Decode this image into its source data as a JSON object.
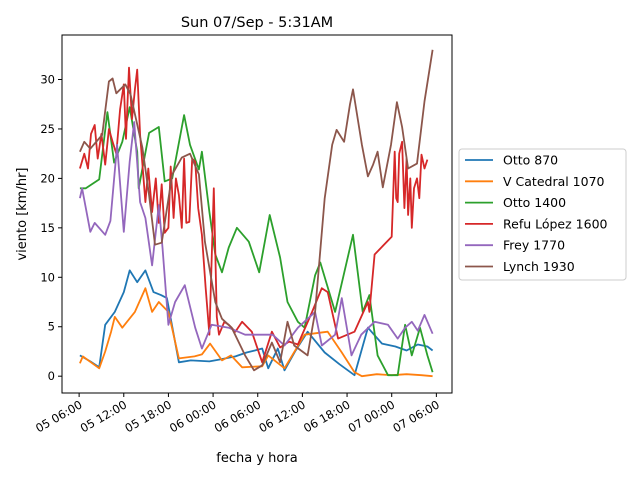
{
  "chart_data": {
    "type": "line",
    "title": "Sun 07/Sep - 5:31AM",
    "xlabel": "fecha y hora",
    "ylabel": "viento [km/hr]",
    "x_unit": "hours since 05 00:00",
    "xlim": [
      3.7,
      56.1
    ],
    "ylim": [
      -1.7,
      34.5
    ],
    "grid": false,
    "legend_position": "center-right-outside",
    "xticks": [
      {
        "value": 6,
        "label": "05 06:00"
      },
      {
        "value": 12,
        "label": "05 12:00"
      },
      {
        "value": 18,
        "label": "05 18:00"
      },
      {
        "value": 24,
        "label": "06 00:00"
      },
      {
        "value": 30,
        "label": "06 06:00"
      },
      {
        "value": 36,
        "label": "06 12:00"
      },
      {
        "value": 42,
        "label": "06 18:00"
      },
      {
        "value": 48,
        "label": "07 00:00"
      },
      {
        "value": 54,
        "label": "07 06:00"
      }
    ],
    "yticks": [
      {
        "value": 0,
        "label": "0"
      },
      {
        "value": 5,
        "label": "5"
      },
      {
        "value": 10,
        "label": "10"
      },
      {
        "value": 15,
        "label": "15"
      },
      {
        "value": 20,
        "label": "20"
      },
      {
        "value": 25,
        "label": "25"
      },
      {
        "value": 30,
        "label": "30"
      }
    ],
    "series": [
      {
        "name": "Otto 870",
        "color": "#1f77b4",
        "points": [
          [
            6.1,
            2.1
          ],
          [
            7.5,
            1.5
          ],
          [
            8.7,
            0.9
          ],
          [
            9.5,
            5.2
          ],
          [
            10.8,
            6.5
          ],
          [
            12.0,
            8.5
          ],
          [
            12.8,
            10.7
          ],
          [
            13.8,
            9.5
          ],
          [
            14.9,
            10.7
          ],
          [
            16.0,
            8.5
          ],
          [
            17.0,
            8.2
          ],
          [
            17.8,
            7.9
          ],
          [
            19.4,
            1.4
          ],
          [
            21,
            1.6
          ],
          [
            23.5,
            1.5
          ],
          [
            25,
            1.7
          ],
          [
            27,
            2.0
          ],
          [
            28.5,
            2.4
          ],
          [
            29.6,
            2.6
          ],
          [
            30.6,
            2.8
          ],
          [
            31.4,
            0.8
          ],
          [
            32.7,
            2.8
          ],
          [
            33.6,
            0.6
          ],
          [
            35,
            2.5
          ],
          [
            36.7,
            4.5
          ],
          [
            39,
            2.4
          ],
          [
            41,
            1.2
          ],
          [
            43,
            0.1
          ],
          [
            44.8,
            4.9
          ],
          [
            46.7,
            3.3
          ],
          [
            48.5,
            3.0
          ],
          [
            50,
            2.6
          ],
          [
            51.5,
            3.2
          ],
          [
            52.8,
            3.0
          ],
          [
            53.5,
            2.6
          ]
        ]
      },
      {
        "name": "V Catedral 1070",
        "color": "#ff7f0e",
        "points": [
          [
            6.1,
            1.3
          ],
          [
            6.5,
            2.0
          ],
          [
            8.7,
            0.8
          ],
          [
            9.5,
            2.5
          ],
          [
            10.3,
            4.5
          ],
          [
            10.8,
            6.0
          ],
          [
            11.8,
            4.9
          ],
          [
            13.5,
            6.5
          ],
          [
            14.9,
            8.9
          ],
          [
            15.8,
            6.5
          ],
          [
            16.7,
            7.5
          ],
          [
            18.0,
            6.5
          ],
          [
            19.4,
            1.8
          ],
          [
            21.5,
            2.0
          ],
          [
            22.5,
            2.2
          ],
          [
            23.6,
            3.3
          ],
          [
            25.2,
            1.6
          ],
          [
            26.4,
            2.1
          ],
          [
            27.9,
            0.9
          ],
          [
            30.6,
            1.0
          ],
          [
            31.4,
            2.1
          ],
          [
            33.6,
            0.8
          ],
          [
            36.3,
            4.2
          ],
          [
            39.4,
            4.5
          ],
          [
            41.3,
            2.4
          ],
          [
            43,
            0.4
          ],
          [
            44,
            0.0
          ],
          [
            46,
            0.2
          ],
          [
            48,
            0.1
          ],
          [
            50,
            0.2
          ],
          [
            52,
            0.1
          ],
          [
            53.5,
            0.0
          ]
        ]
      },
      {
        "name": "Otto 1400",
        "color": "#2ca02c",
        "points": [
          [
            6.1,
            19.0
          ],
          [
            6.9,
            19.0
          ],
          [
            8.7,
            19.9
          ],
          [
            9.8,
            26.7
          ],
          [
            10.7,
            21.6
          ],
          [
            11.8,
            23.7
          ],
          [
            12.8,
            27.2
          ],
          [
            13.8,
            22.7
          ],
          [
            14.0,
            19.0
          ],
          [
            15.4,
            24.6
          ],
          [
            16.7,
            25.2
          ],
          [
            17.5,
            19.7
          ],
          [
            18.5,
            20.0
          ],
          [
            20.1,
            26.4
          ],
          [
            20.9,
            23.4
          ],
          [
            22.1,
            20.9
          ],
          [
            22.5,
            22.7
          ],
          [
            23.5,
            16.6
          ],
          [
            24.3,
            12.3
          ],
          [
            25.2,
            10.5
          ],
          [
            26.1,
            13.0
          ],
          [
            27.2,
            15.0
          ],
          [
            28.8,
            13.6
          ],
          [
            30.2,
            10.5
          ],
          [
            31.6,
            16.3
          ],
          [
            33.0,
            12.0
          ],
          [
            34.0,
            7.5
          ],
          [
            35.4,
            5.5
          ],
          [
            36.3,
            4.9
          ],
          [
            37.7,
            10.2
          ],
          [
            38.4,
            11.5
          ],
          [
            40.4,
            6.5
          ],
          [
            42.8,
            14.3
          ],
          [
            44.1,
            6.5
          ],
          [
            45.0,
            8.2
          ],
          [
            46.1,
            2.1
          ],
          [
            47.5,
            0.1
          ],
          [
            48.8,
            0.1
          ],
          [
            49.8,
            5.2
          ],
          [
            50.7,
            2.1
          ],
          [
            51.8,
            4.9
          ],
          [
            52.8,
            2.1
          ],
          [
            53.5,
            0.4
          ]
        ]
      },
      {
        "name": "Refu López 1600",
        "color": "#d62728",
        "points": [
          [
            6.1,
            21.0
          ],
          [
            6.7,
            22.5
          ],
          [
            7.2,
            21.0
          ],
          [
            7.6,
            24.5
          ],
          [
            8.1,
            25.4
          ],
          [
            8.5,
            22.0
          ],
          [
            9.0,
            24.5
          ],
          [
            9.5,
            21.4
          ],
          [
            10.0,
            25.0
          ],
          [
            10.5,
            23.7
          ],
          [
            11.0,
            22.5
          ],
          [
            11.5,
            27.0
          ],
          [
            12.0,
            29.5
          ],
          [
            12.3,
            24.0
          ],
          [
            12.7,
            31.2
          ],
          [
            13.1,
            26.0
          ],
          [
            13.5,
            29.0
          ],
          [
            13.8,
            31.0
          ],
          [
            14.2,
            24.4
          ],
          [
            14.9,
            17.6
          ],
          [
            15.3,
            21.0
          ],
          [
            15.8,
            16.6
          ],
          [
            16.3,
            20.0
          ],
          [
            16.7,
            15.5
          ],
          [
            17.1,
            19.4
          ],
          [
            17.5,
            14.5
          ],
          [
            18.0,
            15.0
          ],
          [
            18.3,
            21.2
          ],
          [
            18.7,
            16.0
          ],
          [
            19.0,
            20.0
          ],
          [
            19.4,
            18.3
          ],
          [
            19.8,
            15.0
          ],
          [
            20.1,
            22.0
          ],
          [
            20.4,
            15.5
          ],
          [
            20.8,
            15.6
          ],
          [
            21.2,
            22.0
          ],
          [
            21.6,
            21.7
          ],
          [
            22.0,
            17.0
          ],
          [
            22.5,
            14.3
          ],
          [
            23.0,
            9.0
          ],
          [
            23.5,
            4.2
          ],
          [
            24.1,
            19.0
          ],
          [
            24.5,
            6.0
          ],
          [
            24.8,
            4.2
          ],
          [
            25.5,
            5.5
          ],
          [
            26.1,
            5.2
          ],
          [
            27.0,
            4.5
          ],
          [
            27.9,
            5.5
          ],
          [
            29.2,
            4.5
          ],
          [
            30.6,
            1.4
          ],
          [
            31.9,
            4.5
          ],
          [
            33.0,
            2.9
          ],
          [
            34.2,
            3.5
          ],
          [
            35.4,
            3.2
          ],
          [
            37.3,
            6.5
          ],
          [
            38.6,
            8.9
          ],
          [
            39.4,
            8.5
          ],
          [
            40.8,
            3.8
          ],
          [
            43.0,
            4.5
          ],
          [
            44.8,
            7.5
          ],
          [
            45.0,
            6.5
          ],
          [
            45.7,
            12.3
          ],
          [
            48.0,
            14.1
          ],
          [
            48.4,
            22.7
          ],
          [
            48.6,
            18.0
          ],
          [
            48.8,
            17.6
          ],
          [
            49.0,
            22.5
          ],
          [
            49.4,
            23.7
          ],
          [
            49.7,
            17.0
          ],
          [
            50.0,
            22.0
          ],
          [
            50.2,
            16.3
          ],
          [
            50.5,
            20.0
          ],
          [
            50.7,
            15.0
          ],
          [
            51.0,
            19.0
          ],
          [
            51.4,
            20.0
          ],
          [
            51.7,
            18.0
          ],
          [
            52.0,
            22.4
          ],
          [
            52.4,
            21.0
          ],
          [
            52.8,
            21.9
          ]
        ]
      },
      {
        "name": "Frey 1770",
        "color": "#9467bd",
        "points": [
          [
            6.1,
            18.0
          ],
          [
            6.4,
            19.0
          ],
          [
            7.5,
            14.6
          ],
          [
            8.1,
            15.5
          ],
          [
            9.5,
            14.3
          ],
          [
            10.2,
            15.7
          ],
          [
            11.1,
            23.4
          ],
          [
            12.0,
            14.6
          ],
          [
            12.8,
            21.7
          ],
          [
            13.4,
            25.7
          ],
          [
            14.2,
            17.6
          ],
          [
            14.9,
            16.0
          ],
          [
            15.8,
            11.2
          ],
          [
            16.7,
            17.3
          ],
          [
            17.2,
            13.0
          ],
          [
            18.0,
            5.2
          ],
          [
            18.9,
            7.5
          ],
          [
            20.2,
            9.2
          ],
          [
            21.6,
            4.9
          ],
          [
            22.5,
            2.8
          ],
          [
            23.8,
            5.2
          ],
          [
            26.1,
            4.9
          ],
          [
            28.3,
            4.2
          ],
          [
            30.6,
            4.2
          ],
          [
            32.0,
            4.2
          ],
          [
            33.6,
            3.1
          ],
          [
            35.4,
            4.9
          ],
          [
            37.7,
            6.5
          ],
          [
            38.6,
            3.1
          ],
          [
            40.4,
            4.2
          ],
          [
            41.3,
            7.9
          ],
          [
            42.6,
            2.1
          ],
          [
            43.9,
            4.2
          ],
          [
            45.7,
            5.5
          ],
          [
            47.5,
            5.2
          ],
          [
            48.8,
            3.8
          ],
          [
            49.8,
            4.9
          ],
          [
            50.7,
            5.5
          ],
          [
            51.5,
            4.6
          ],
          [
            52.4,
            6.2
          ],
          [
            53.5,
            4.3
          ]
        ]
      },
      {
        "name": "Lynch 1930",
        "color": "#8c564b",
        "points": [
          [
            6.1,
            22.7
          ],
          [
            6.7,
            23.7
          ],
          [
            7.5,
            23.0
          ],
          [
            9.1,
            24.4
          ],
          [
            10.0,
            29.8
          ],
          [
            10.5,
            30.1
          ],
          [
            11.0,
            28.6
          ],
          [
            12.2,
            29.5
          ],
          [
            12.9,
            28.5
          ],
          [
            14.5,
            23.1
          ],
          [
            15.4,
            18.3
          ],
          [
            16.2,
            13.3
          ],
          [
            17.1,
            13.5
          ],
          [
            18.5,
            20.4
          ],
          [
            19.8,
            22.1
          ],
          [
            20.9,
            22.5
          ],
          [
            22.1,
            20.4
          ],
          [
            22.9,
            13.6
          ],
          [
            24.3,
            7.5
          ],
          [
            25.2,
            5.8
          ],
          [
            26.5,
            4.9
          ],
          [
            28.3,
            2.1
          ],
          [
            29.5,
            0.6
          ],
          [
            30.6,
            1.1
          ],
          [
            31.9,
            3.4
          ],
          [
            33.0,
            1.4
          ],
          [
            34.0,
            5.5
          ],
          [
            34.9,
            3.1
          ],
          [
            36.7,
            2.1
          ],
          [
            37.7,
            6.5
          ],
          [
            39.0,
            18.0
          ],
          [
            40.0,
            23.4
          ],
          [
            40.6,
            24.9
          ],
          [
            41.6,
            23.7
          ],
          [
            42.4,
            27.5
          ],
          [
            42.8,
            29.0
          ],
          [
            44.0,
            23.4
          ],
          [
            44.8,
            20.2
          ],
          [
            45.5,
            21.4
          ],
          [
            46.1,
            22.7
          ],
          [
            46.8,
            19.1
          ],
          [
            47.9,
            23.4
          ],
          [
            48.7,
            27.7
          ],
          [
            49.4,
            25.2
          ],
          [
            50.2,
            21.0
          ],
          [
            51.4,
            21.5
          ],
          [
            52.4,
            27.8
          ],
          [
            53.5,
            33.0
          ]
        ]
      }
    ]
  }
}
